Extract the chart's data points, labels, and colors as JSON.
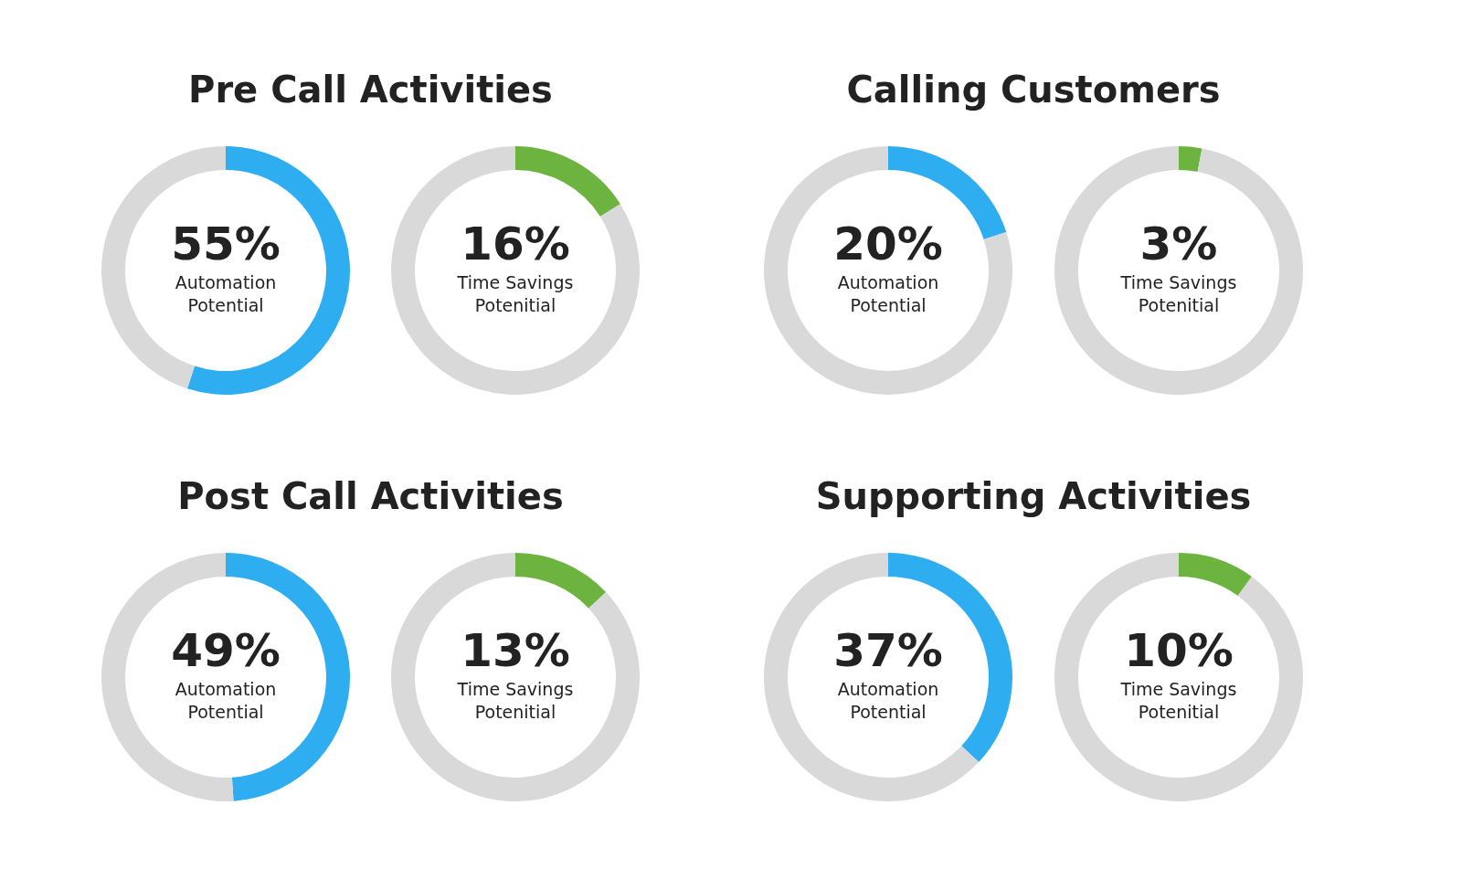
{
  "chart_data": [
    {
      "type": "donut",
      "title": "Pre Call Activities",
      "categories": [
        "Automation Potential",
        null
      ],
      "values": [
        55,
        45
      ],
      "colors": [
        "#2eaef0",
        "#d9d9d9"
      ],
      "value_labels": [
        "55%",
        null
      ]
    },
    {
      "type": "donut",
      "categories": [
        "Time Savings Potenitial",
        null
      ],
      "values": [
        16,
        84
      ],
      "colors": [
        "#6db33f",
        "#d9d9d9"
      ],
      "value_labels": [
        "16%",
        null
      ]
    },
    {
      "type": "donut",
      "title": "Calling Customers",
      "categories": [
        "Automation Potential",
        null
      ],
      "values": [
        20,
        80
      ],
      "colors": [
        "#2eaef0",
        "#d9d9d9"
      ],
      "value_labels": [
        "20%",
        null
      ]
    },
    {
      "type": "donut",
      "categories": [
        "Time Savings Potenitial",
        null
      ],
      "values": [
        3,
        97
      ],
      "colors": [
        "#6db33f",
        "#d9d9d9"
      ],
      "value_labels": [
        "3%",
        null
      ]
    },
    {
      "type": "donut",
      "title": "Post Call Activities",
      "categories": [
        "Automation Potential",
        null
      ],
      "values": [
        49,
        51
      ],
      "colors": [
        "#2eaef0",
        "#d9d9d9"
      ],
      "value_labels": [
        "49%",
        null
      ]
    },
    {
      "type": "donut",
      "categories": [
        "Time Savings Potenitial",
        null
      ],
      "values": [
        13,
        87
      ],
      "colors": [
        "#6db33f",
        "#d9d9d9"
      ],
      "value_labels": [
        "13%",
        null
      ]
    },
    {
      "type": "donut",
      "title": "Supporting Activities",
      "categories": [
        "Automation Potential",
        null
      ],
      "values": [
        37,
        63
      ],
      "colors": [
        "#2eaef0",
        "#d9d9d9"
      ],
      "value_labels": [
        "37%",
        null
      ]
    },
    {
      "type": "donut",
      "categories": [
        "Time Savings Potenitial",
        null
      ],
      "values": [
        10,
        90
      ],
      "colors": [
        "#6db33f",
        "#d9d9d9"
      ],
      "value_labels": [
        "10%",
        null
      ]
    }
  ]
}
